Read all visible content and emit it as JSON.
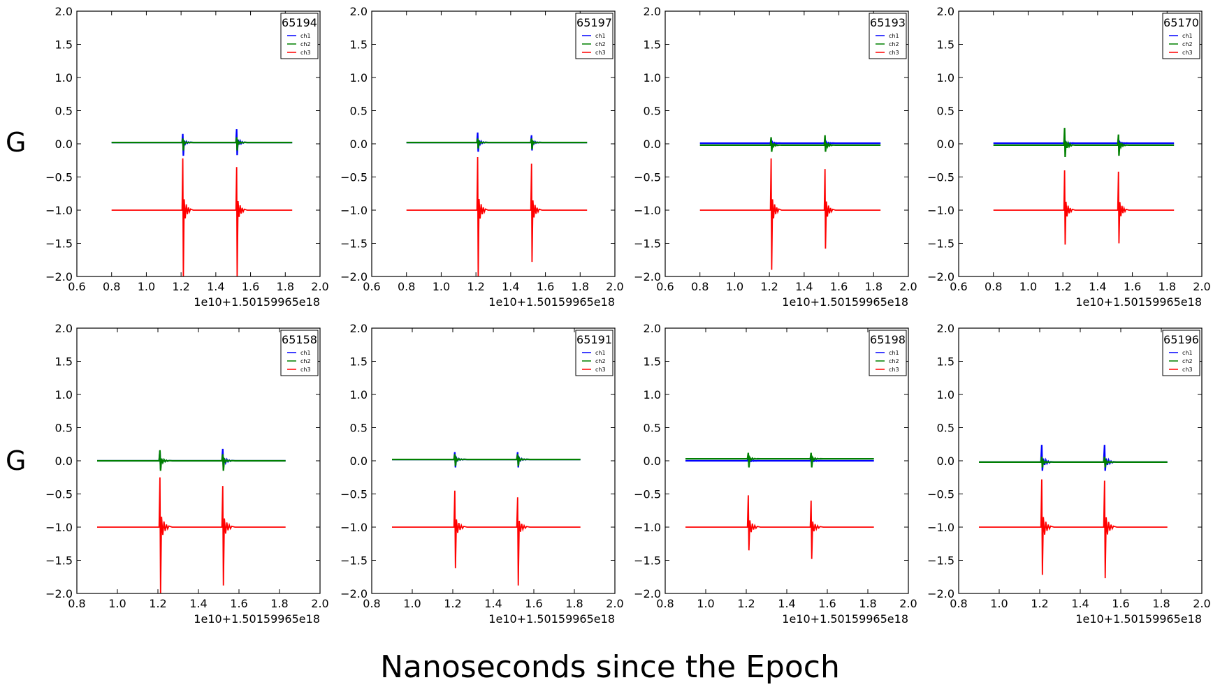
{
  "figure": {
    "row_labels": [
      "G",
      "G"
    ],
    "xlabel": "Nanoseconds since the Epoch",
    "offset_text": "1e10+1.50159965e18",
    "ytick_labels": [
      "2.0",
      "1.5",
      "1.0",
      "0.5",
      "0.0",
      "−0.5",
      "−1.0",
      "−1.5",
      "−2.0"
    ],
    "series_colors": {
      "ch1": "#0000ff",
      "ch2": "#008000",
      "ch3": "#ff0000"
    }
  },
  "chart_data": [
    {
      "type": "line",
      "title": "65194",
      "offset": "1e10+1.50159965e18",
      "xlim": [
        0.6,
        2.0
      ],
      "ylim": [
        -2.0,
        2.0
      ],
      "xticks": [
        "0.6",
        "0.8",
        "1.0",
        "1.2",
        "1.4",
        "1.6",
        "1.8",
        "2.0"
      ],
      "legend": [
        "ch1",
        "ch2",
        "ch3"
      ],
      "legend_loc": "upper right",
      "x_range": [
        0.8,
        1.84
      ],
      "spike_x": [
        1.21,
        1.52
      ],
      "series": [
        {
          "name": "ch1",
          "baseline": 0.02,
          "spike_peaks": [
            [
              0.15,
              -0.18
            ],
            [
              0.22,
              -0.17
            ]
          ]
        },
        {
          "name": "ch2",
          "baseline": 0.02,
          "spike_peaks": [
            [
              0.08,
              -0.1
            ],
            [
              0.1,
              -0.1
            ]
          ]
        },
        {
          "name": "ch3",
          "baseline": -1.0,
          "spike_peaks": [
            [
              -0.22,
              -2.0
            ],
            [
              -0.35,
              -2.0
            ]
          ]
        }
      ]
    },
    {
      "type": "line",
      "title": "65197",
      "offset": "1e10+1.50159965e18",
      "xlim": [
        0.6,
        2.0
      ],
      "ylim": [
        -2.0,
        2.0
      ],
      "xticks": [
        "0.6",
        "0.8",
        "1.0",
        "1.2",
        "1.4",
        "1.6",
        "1.8",
        "2.0"
      ],
      "legend": [
        "ch1",
        "ch2",
        "ch3"
      ],
      "legend_loc": "upper right",
      "x_range": [
        0.8,
        1.84
      ],
      "spike_x": [
        1.21,
        1.52
      ],
      "series": [
        {
          "name": "ch1",
          "baseline": 0.02,
          "spike_peaks": [
            [
              0.17,
              -0.12
            ],
            [
              0.13,
              -0.1
            ]
          ]
        },
        {
          "name": "ch2",
          "baseline": 0.02,
          "spike_peaks": [
            [
              0.08,
              -0.07
            ],
            [
              0.08,
              -0.08
            ]
          ]
        },
        {
          "name": "ch3",
          "baseline": -1.0,
          "spike_peaks": [
            [
              -0.2,
              -2.0
            ],
            [
              -0.3,
              -1.78
            ]
          ]
        }
      ]
    },
    {
      "type": "line",
      "title": "65193",
      "offset": "1e10+1.50159965e18",
      "xlim": [
        0.6,
        2.0
      ],
      "ylim": [
        -2.0,
        2.0
      ],
      "xticks": [
        "0.6",
        "0.8",
        "1.0",
        "1.2",
        "1.4",
        "1.6",
        "1.8",
        "2.0"
      ],
      "legend": [
        "ch1",
        "ch2",
        "ch3"
      ],
      "legend_loc": "upper right",
      "x_range": [
        0.8,
        1.84
      ],
      "spike_x": [
        1.21,
        1.52
      ],
      "series": [
        {
          "name": "ch1",
          "baseline": 0.01,
          "spike_peaks": [
            [
              0.08,
              -0.06
            ],
            [
              0.08,
              -0.06
            ]
          ]
        },
        {
          "name": "ch2",
          "baseline": -0.02,
          "spike_peaks": [
            [
              0.1,
              -0.12
            ],
            [
              0.13,
              -0.12
            ]
          ]
        },
        {
          "name": "ch3",
          "baseline": -1.0,
          "spike_peaks": [
            [
              -0.22,
              -1.9
            ],
            [
              -0.38,
              -1.58
            ]
          ]
        }
      ]
    },
    {
      "type": "line",
      "title": "65170",
      "offset": "1e10+1.50159965e18",
      "xlim": [
        0.6,
        2.0
      ],
      "ylim": [
        -2.0,
        2.0
      ],
      "xticks": [
        "0.6",
        "0.8",
        "1.0",
        "1.2",
        "1.4",
        "1.6",
        "1.8",
        "2.0"
      ],
      "legend": [
        "ch1",
        "ch2",
        "ch3"
      ],
      "legend_loc": "upper right",
      "x_range": [
        0.8,
        1.84
      ],
      "spike_x": [
        1.21,
        1.52
      ],
      "series": [
        {
          "name": "ch1",
          "baseline": 0.01,
          "spike_peaks": [
            [
              0.08,
              -0.06
            ],
            [
              0.08,
              -0.06
            ]
          ]
        },
        {
          "name": "ch2",
          "baseline": -0.02,
          "spike_peaks": [
            [
              0.24,
              -0.2
            ],
            [
              0.14,
              -0.18
            ]
          ]
        },
        {
          "name": "ch3",
          "baseline": -1.0,
          "spike_peaks": [
            [
              -0.4,
              -1.52
            ],
            [
              -0.42,
              -1.5
            ]
          ]
        }
      ]
    },
    {
      "type": "line",
      "title": "65158",
      "offset": "1e10+1.50159965e18",
      "xlim": [
        0.8,
        2.0
      ],
      "ylim": [
        -2.0,
        2.0
      ],
      "xticks": [
        "0.8",
        "1.0",
        "1.2",
        "1.4",
        "1.6",
        "1.8",
        "2.0"
      ],
      "legend": [
        "ch1",
        "ch2",
        "ch3"
      ],
      "legend_loc": "upper right",
      "x_range": [
        0.9,
        1.83
      ],
      "spike_x": [
        1.21,
        1.52
      ],
      "series": [
        {
          "name": "ch1",
          "baseline": 0.0,
          "spike_peaks": [
            [
              0.15,
              -0.12
            ],
            [
              0.18,
              -0.12
            ]
          ]
        },
        {
          "name": "ch2",
          "baseline": 0.0,
          "spike_peaks": [
            [
              0.16,
              -0.15
            ],
            [
              0.1,
              -0.15
            ]
          ]
        },
        {
          "name": "ch3",
          "baseline": -1.0,
          "spike_peaks": [
            [
              -0.25,
              -2.0
            ],
            [
              -0.38,
              -1.88
            ]
          ]
        }
      ]
    },
    {
      "type": "line",
      "title": "65191",
      "offset": "1e10+1.50159965e18",
      "xlim": [
        0.8,
        2.0
      ],
      "ylim": [
        -2.0,
        2.0
      ],
      "xticks": [
        "0.8",
        "1.0",
        "1.2",
        "1.4",
        "1.6",
        "1.8",
        "2.0"
      ],
      "legend": [
        "ch1",
        "ch2",
        "ch3"
      ],
      "legend_loc": "upper right",
      "x_range": [
        0.9,
        1.83
      ],
      "spike_x": [
        1.21,
        1.52
      ],
      "series": [
        {
          "name": "ch1",
          "baseline": 0.02,
          "spike_peaks": [
            [
              0.13,
              -0.1
            ],
            [
              0.13,
              -0.1
            ]
          ]
        },
        {
          "name": "ch2",
          "baseline": 0.02,
          "spike_peaks": [
            [
              0.1,
              -0.08
            ],
            [
              0.1,
              -0.08
            ]
          ]
        },
        {
          "name": "ch3",
          "baseline": -1.0,
          "spike_peaks": [
            [
              -0.45,
              -1.62
            ],
            [
              -0.55,
              -1.88
            ]
          ]
        }
      ]
    },
    {
      "type": "line",
      "title": "65198",
      "offset": "1e10+1.50159965e18",
      "xlim": [
        0.8,
        2.0
      ],
      "ylim": [
        -2.0,
        2.0
      ],
      "xticks": [
        "0.8",
        "1.0",
        "1.2",
        "1.4",
        "1.6",
        "1.8",
        "2.0"
      ],
      "legend": [
        "ch1",
        "ch2",
        "ch3"
      ],
      "legend_loc": "upper right",
      "x_range": [
        0.9,
        1.83
      ],
      "spike_x": [
        1.21,
        1.52
      ],
      "series": [
        {
          "name": "ch1",
          "baseline": 0.0,
          "spike_peaks": [
            [
              0.05,
              -0.05
            ],
            [
              0.05,
              -0.05
            ]
          ]
        },
        {
          "name": "ch2",
          "baseline": 0.03,
          "spike_peaks": [
            [
              0.12,
              -0.1
            ],
            [
              0.12,
              -0.1
            ]
          ]
        },
        {
          "name": "ch3",
          "baseline": -1.0,
          "spike_peaks": [
            [
              -0.52,
              -1.35
            ],
            [
              -0.6,
              -1.48
            ]
          ]
        }
      ]
    },
    {
      "type": "line",
      "title": "65196",
      "offset": "1e10+1.50159965e18",
      "xlim": [
        0.8,
        2.0
      ],
      "ylim": [
        -2.0,
        2.0
      ],
      "xticks": [
        "0.8",
        "1.0",
        "1.2",
        "1.4",
        "1.6",
        "1.8",
        "2.0"
      ],
      "legend": [
        "ch1",
        "ch2",
        "ch3"
      ],
      "legend_loc": "upper right",
      "x_range": [
        0.9,
        1.83
      ],
      "spike_x": [
        1.21,
        1.52
      ],
      "series": [
        {
          "name": "ch1",
          "baseline": -0.02,
          "spike_peaks": [
            [
              0.24,
              -0.15
            ],
            [
              0.24,
              -0.15
            ]
          ]
        },
        {
          "name": "ch2",
          "baseline": -0.02,
          "spike_peaks": [
            [
              0.06,
              -0.1
            ],
            [
              0.06,
              -0.1
            ]
          ]
        },
        {
          "name": "ch3",
          "baseline": -1.0,
          "spike_peaks": [
            [
              -0.28,
              -1.72
            ],
            [
              -0.3,
              -1.77
            ]
          ]
        }
      ]
    }
  ]
}
